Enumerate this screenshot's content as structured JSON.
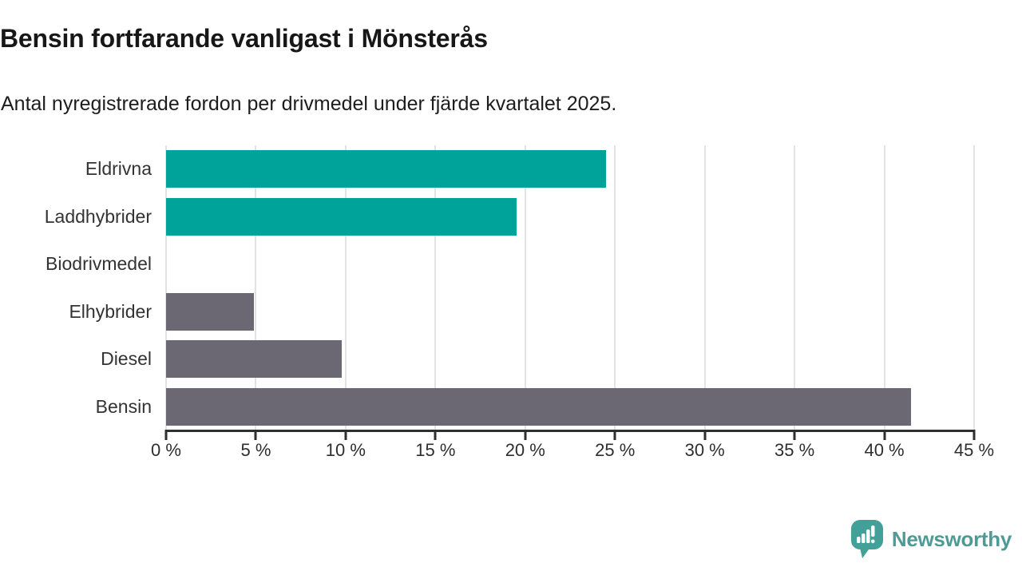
{
  "chart_data": {
    "type": "bar",
    "orientation": "horizontal",
    "title": "Bensin fortfarande vanligast i Mönsterås",
    "subtitle": "Antal nyregistrerade fordon per drivmedel under fjärde kvartalet 2025.",
    "categories": [
      "Eldrivna",
      "Laddhybrider",
      "Biodrivmedel",
      "Elhybrider",
      "Diesel",
      "Bensin"
    ],
    "values": [
      24.5,
      19.5,
      0,
      4.9,
      9.8,
      41.5
    ],
    "value_unit": "%",
    "xlim": [
      0,
      45
    ],
    "tick_step": 5,
    "x_tick_labels": [
      "0 %",
      "5 %",
      "10 %",
      "15 %",
      "20 %",
      "25 %",
      "30 %",
      "35 %",
      "40 %",
      "45 %"
    ],
    "bar_colors": [
      "#00a399",
      "#00a399",
      "#6b6873",
      "#6b6873",
      "#6b6873",
      "#6b6873"
    ],
    "colors": {
      "highlight": "#00a399",
      "default": "#6b6873",
      "grid": "#e3e3e3",
      "axis": "#2f2f2f"
    },
    "grid": true,
    "legend": false
  },
  "branding": {
    "logo_text": "Newsworthy",
    "logo_icon_color": "#42a099",
    "logo_text_color": "#4e9a95"
  }
}
